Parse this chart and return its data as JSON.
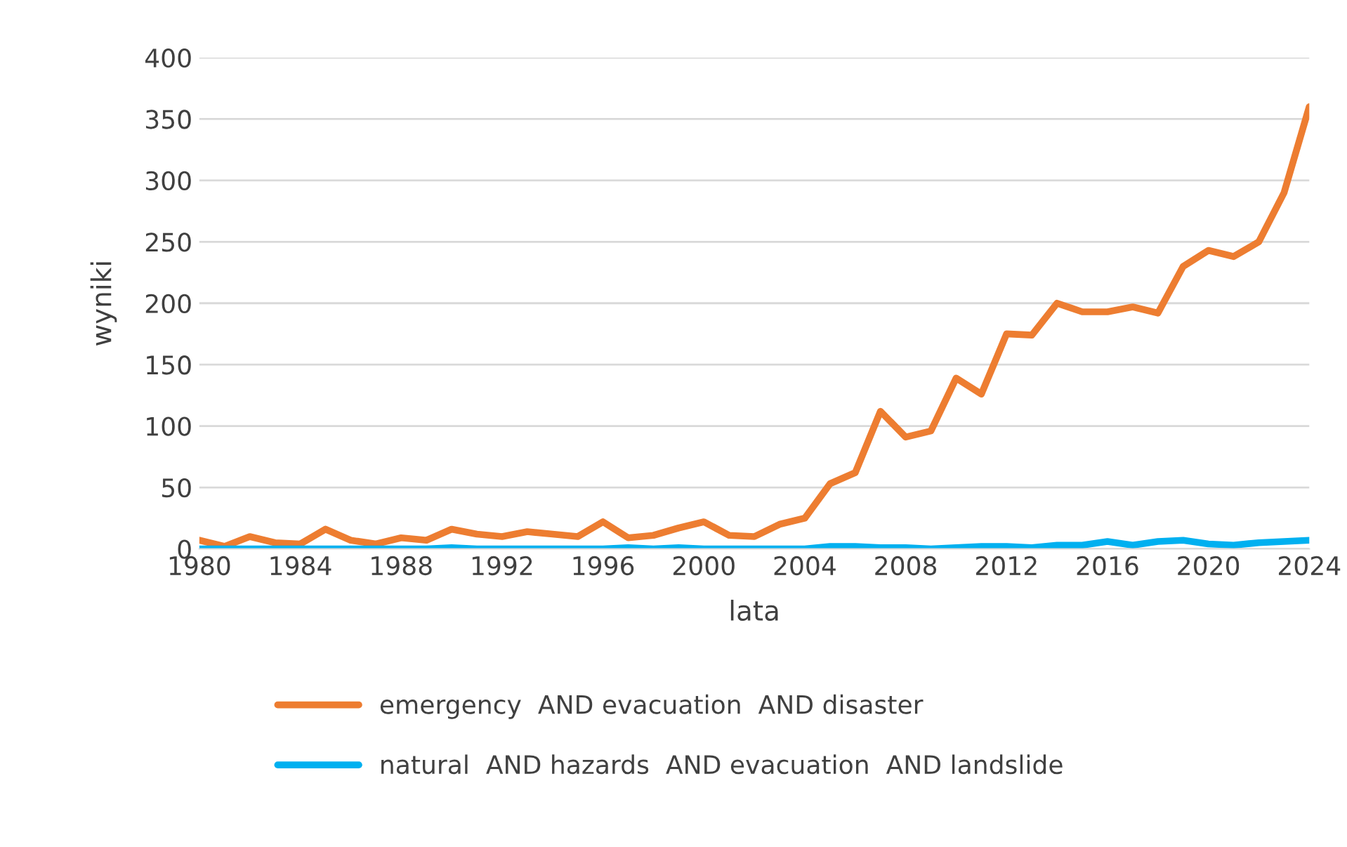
{
  "chart_data": {
    "type": "line",
    "xlabel": "lata",
    "ylabel": "wyniki",
    "x": [
      1980,
      1981,
      1982,
      1983,
      1984,
      1985,
      1986,
      1987,
      1988,
      1989,
      1990,
      1991,
      1992,
      1993,
      1994,
      1995,
      1996,
      1997,
      1998,
      1999,
      2000,
      2001,
      2002,
      2003,
      2004,
      2005,
      2006,
      2007,
      2008,
      2009,
      2010,
      2011,
      2012,
      2013,
      2014,
      2015,
      2016,
      2017,
      2018,
      2019,
      2020,
      2021,
      2022,
      2023,
      2024
    ],
    "series": [
      {
        "name": "emergency  AND evacuation  AND disaster",
        "color": "#ed7d31",
        "values": [
          7,
          2,
          10,
          5,
          4,
          16,
          7,
          4,
          9,
          7,
          16,
          12,
          10,
          14,
          12,
          10,
          22,
          9,
          11,
          17,
          22,
          11,
          10,
          20,
          25,
          53,
          62,
          112,
          91,
          96,
          139,
          126,
          175,
          174,
          200,
          193,
          193,
          197,
          192,
          230,
          243,
          238,
          250,
          290,
          360
        ]
      },
      {
        "name": "natural  AND hazards  AND evacuation  AND landslide",
        "color": "#00b0f0",
        "values": [
          0,
          0,
          0,
          0,
          0,
          0,
          0,
          0,
          0,
          0,
          1,
          0,
          0,
          0,
          0,
          0,
          0,
          1,
          0,
          1,
          0,
          0,
          0,
          0,
          0,
          2,
          2,
          1,
          1,
          0,
          1,
          2,
          2,
          1,
          3,
          3,
          6,
          3,
          6,
          7,
          4,
          3,
          5,
          6,
          7
        ]
      }
    ],
    "xlim": [
      1980,
      2024
    ],
    "xticks": [
      1980,
      1984,
      1988,
      1992,
      1996,
      2000,
      2004,
      2008,
      2012,
      2016,
      2020,
      2024
    ],
    "ylim": [
      0,
      400
    ],
    "yticks": [
      0,
      50,
      100,
      150,
      200,
      250,
      300,
      350,
      400
    ],
    "grid": "y",
    "legend": "bottom",
    "marker": "none",
    "line_style": "solid"
  }
}
